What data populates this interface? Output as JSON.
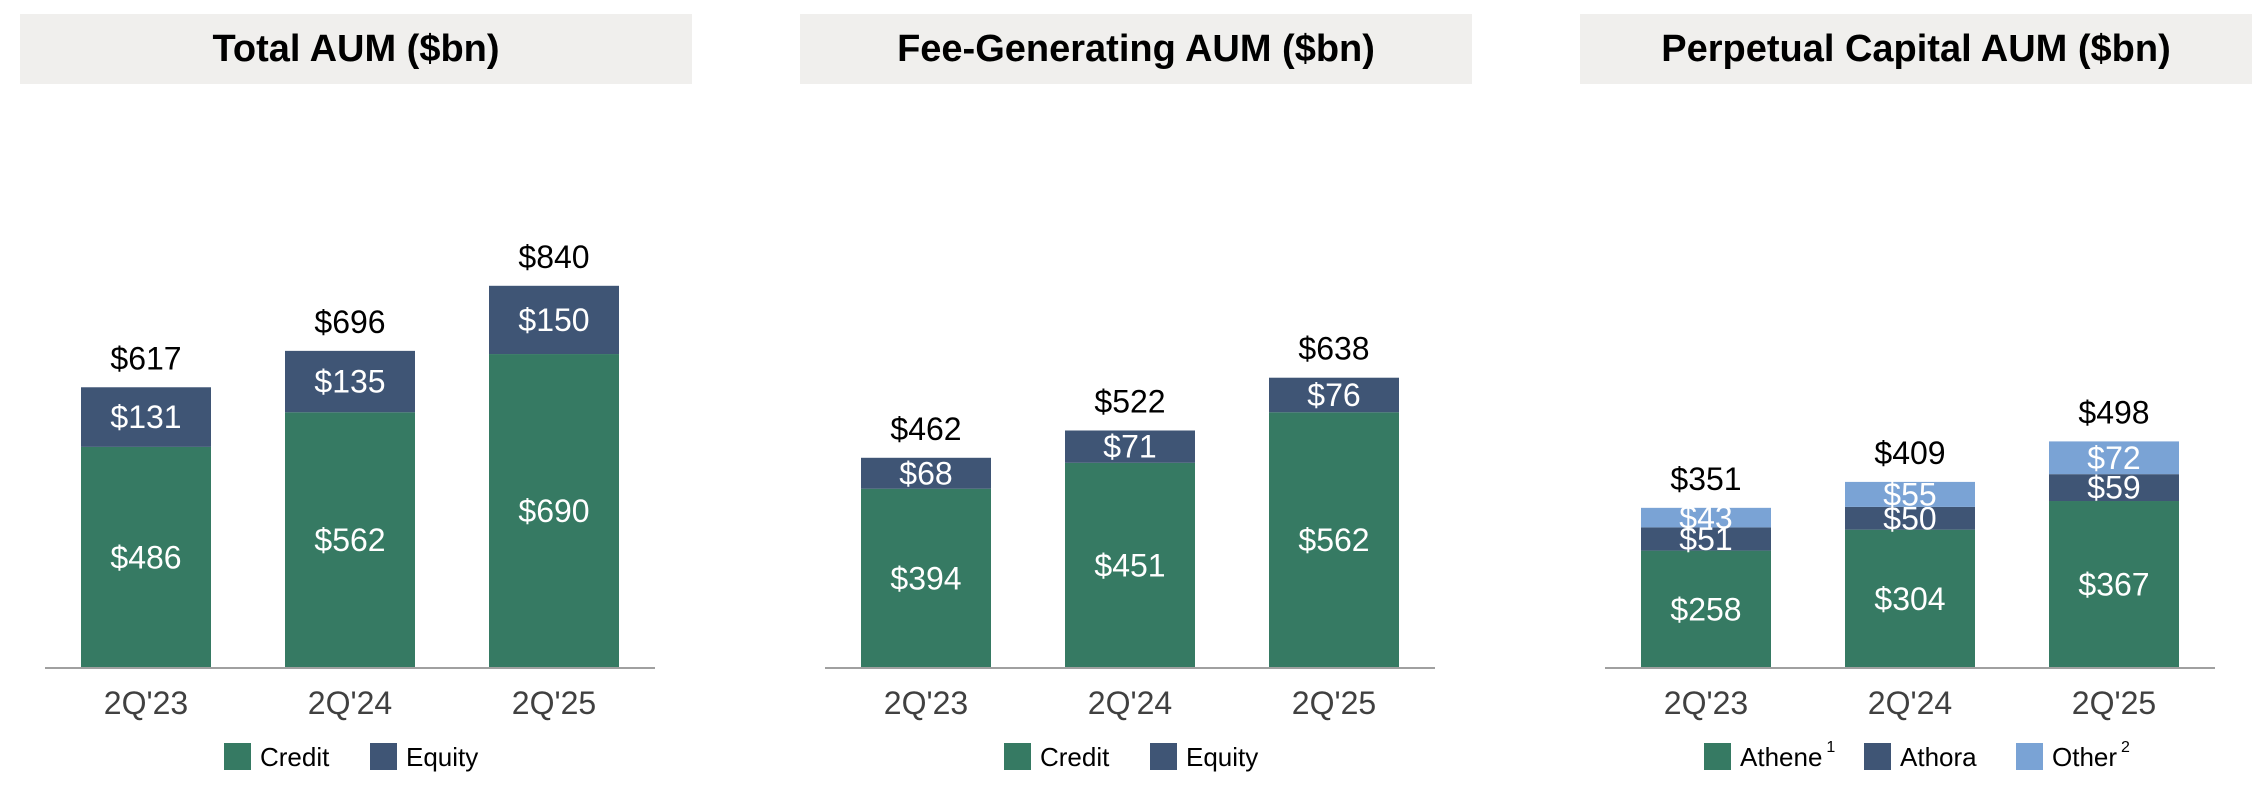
{
  "colors": {
    "credit": "#367A63",
    "equity": "#3F5575",
    "athene": "#367A63",
    "athora": "#3F5575",
    "other": "#7AA3D5",
    "title_bg": "#F0EFED",
    "axis": "#A0A0A0"
  },
  "chart_data": [
    {
      "type": "bar",
      "stacked": true,
      "title": "Total AUM ($bn)",
      "categories": [
        "2Q'23",
        "2Q'24",
        "2Q'25"
      ],
      "series": [
        {
          "name": "Credit",
          "color": "#367A63",
          "values": [
            486,
            562,
            690
          ],
          "labels": [
            "$486",
            "$562",
            "$690"
          ]
        },
        {
          "name": "Equity",
          "color": "#3F5575",
          "values": [
            131,
            135,
            150
          ],
          "labels": [
            "$131",
            "$135",
            "$150"
          ]
        }
      ],
      "totals": [
        617,
        696,
        840
      ],
      "total_labels": [
        "$617",
        "$696",
        "$840"
      ],
      "legend": [
        {
          "name": "Credit",
          "sup": ""
        },
        {
          "name": "Equity",
          "sup": ""
        }
      ],
      "legend_position": "bottom"
    },
    {
      "type": "bar",
      "stacked": true,
      "title": "Fee-Generating AUM ($bn)",
      "categories": [
        "2Q'23",
        "2Q'24",
        "2Q'25"
      ],
      "series": [
        {
          "name": "Credit",
          "color": "#367A63",
          "values": [
            394,
            451,
            562
          ],
          "labels": [
            "$394",
            "$451",
            "$562"
          ]
        },
        {
          "name": "Equity",
          "color": "#3F5575",
          "values": [
            68,
            71,
            76
          ],
          "labels": [
            "$68",
            "$71",
            "$76"
          ]
        }
      ],
      "totals": [
        462,
        522,
        638
      ],
      "total_labels": [
        "$462",
        "$522",
        "$638"
      ],
      "legend": [
        {
          "name": "Credit",
          "sup": ""
        },
        {
          "name": "Equity",
          "sup": ""
        }
      ],
      "legend_position": "bottom"
    },
    {
      "type": "bar",
      "stacked": true,
      "title": "Perpetual Capital AUM ($bn)",
      "categories": [
        "2Q'23",
        "2Q'24",
        "2Q'25"
      ],
      "series": [
        {
          "name": "Athene",
          "color": "#367A63",
          "values": [
            258,
            304,
            367
          ],
          "labels": [
            "$258",
            "$304",
            "$367"
          ]
        },
        {
          "name": "Athora",
          "color": "#3F5575",
          "values": [
            51,
            50,
            59
          ],
          "labels": [
            "$51",
            "$50",
            "$59"
          ]
        },
        {
          "name": "Other",
          "color": "#7AA3D5",
          "values": [
            43,
            55,
            72
          ],
          "labels": [
            "$43",
            "$55",
            "$72"
          ]
        }
      ],
      "totals": [
        351,
        409,
        498
      ],
      "total_labels": [
        "$351",
        "$409",
        "$498"
      ],
      "legend": [
        {
          "name": "Athene",
          "sup": "1"
        },
        {
          "name": "Athora",
          "sup": ""
        },
        {
          "name": "Other",
          "sup": "2"
        }
      ],
      "legend_position": "bottom"
    }
  ]
}
